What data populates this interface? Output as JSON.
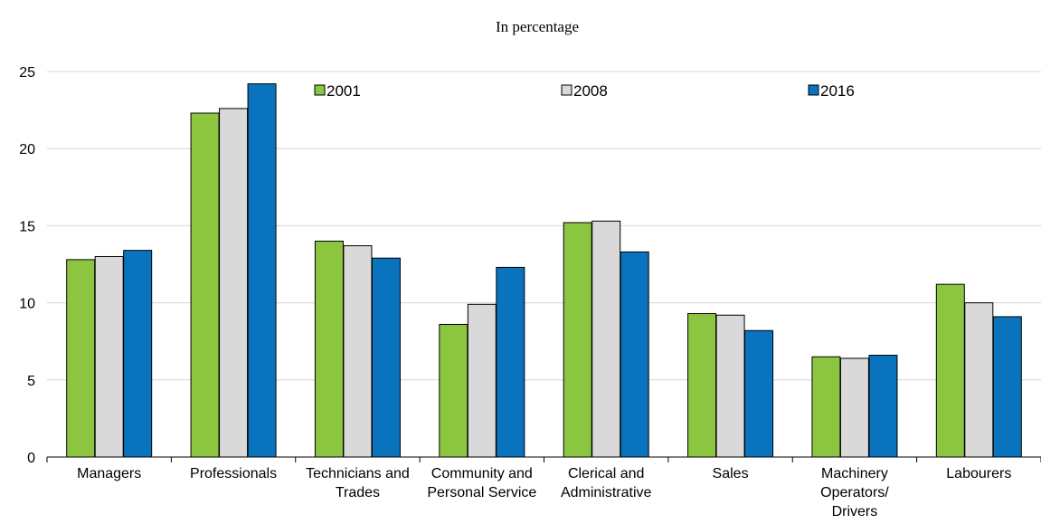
{
  "chart_data": {
    "type": "bar",
    "subtitle": "In percentage",
    "categories": [
      [
        "Managers"
      ],
      [
        "Professionals"
      ],
      [
        "Technicians and",
        "Trades"
      ],
      [
        "Community and",
        "Personal Service"
      ],
      [
        "Clerical and",
        "Administrative"
      ],
      [
        "Sales"
      ],
      [
        "Machinery",
        "Operators/",
        "Drivers"
      ],
      [
        "Labourers"
      ]
    ],
    "series": [
      {
        "name": "2001",
        "color": "#8cc641",
        "values": [
          12.8,
          22.3,
          14.0,
          8.6,
          15.2,
          9.3,
          6.5,
          11.2
        ]
      },
      {
        "name": "2008",
        "color": "#d9d9d9",
        "values": [
          13.0,
          22.6,
          13.7,
          9.9,
          15.3,
          9.2,
          6.4,
          10.0
        ]
      },
      {
        "name": "2016",
        "color": "#0a73be",
        "values": [
          13.4,
          24.2,
          12.9,
          12.3,
          13.3,
          8.2,
          6.6,
          9.1
        ]
      }
    ],
    "ylim": [
      0,
      25
    ],
    "yticks": [
      0,
      5,
      10,
      15,
      20,
      25
    ],
    "grid": true,
    "legend_position": "top-inside"
  }
}
